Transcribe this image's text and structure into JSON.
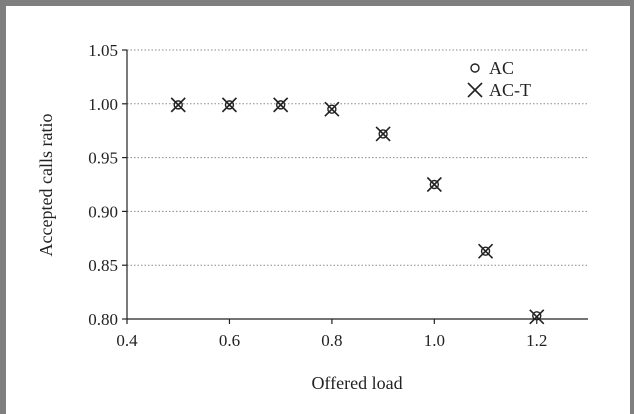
{
  "chart_data": {
    "type": "scatter",
    "xlabel": "Offered load",
    "ylabel": "Accepted calls ratio",
    "xlim": [
      0.4,
      1.3
    ],
    "ylim": [
      0.8,
      1.05
    ],
    "xticks": [
      0.4,
      0.6,
      0.8,
      1.0,
      1.2
    ],
    "xtick_labels": [
      "0.4",
      "0.6",
      "0.8",
      "1.0",
      "1.2"
    ],
    "yticks": [
      0.8,
      0.85,
      0.9,
      0.95,
      1.0,
      1.05
    ],
    "ytick_labels": [
      "0.80",
      "0.85",
      "0.90",
      "0.95",
      "1.00",
      "1.05"
    ],
    "grid": "horizontal dotted",
    "legend_position": "top-right",
    "series": [
      {
        "name": "AC",
        "marker": "circle",
        "x": [
          0.5,
          0.6,
          0.7,
          0.8,
          0.9,
          1.0,
          1.1,
          1.2
        ],
        "y": [
          0.999,
          0.999,
          0.999,
          0.995,
          0.972,
          0.925,
          0.863,
          0.803
        ]
      },
      {
        "name": "AC-T",
        "marker": "x",
        "x": [
          0.5,
          0.6,
          0.7,
          0.8,
          0.9,
          1.0,
          1.1,
          1.2
        ],
        "y": [
          0.999,
          0.999,
          0.999,
          0.995,
          0.972,
          0.925,
          0.863,
          0.802
        ]
      }
    ]
  }
}
